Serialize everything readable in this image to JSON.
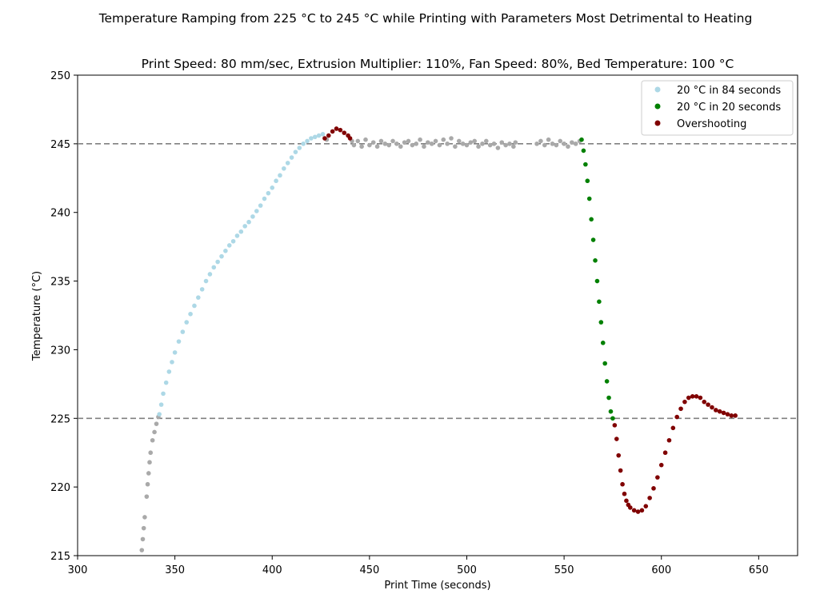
{
  "chart_data": {
    "type": "scatter",
    "title": "Temperature Ramping from 225 °C to 245 °C while Printing with Parameters Most Detrimental to Heating",
    "subtitle": "Print Speed: 80 mm/sec, Extrusion Multiplier: 110%, Fan Speed: 80%, Bed Temperature: 100 °C",
    "xlabel": "Print Time (seconds)",
    "ylabel": "Temperature (°C)",
    "xlim": [
      300,
      670
    ],
    "ylim": [
      215,
      250
    ],
    "xticks": [
      300,
      350,
      400,
      450,
      500,
      550,
      600,
      650
    ],
    "yticks": [
      215,
      220,
      225,
      230,
      235,
      240,
      245,
      250
    ],
    "xtick_labels": [
      "300",
      "350",
      "400",
      "450",
      "500",
      "550",
      "600",
      "650"
    ],
    "ytick_labels": [
      "215",
      "220",
      "225",
      "230",
      "235",
      "240",
      "245",
      "250"
    ],
    "reference_lines": [
      225,
      245
    ],
    "legend_position": "top-right",
    "legend": [
      {
        "label": "20 °C in 84 seconds",
        "color": "#add8e6"
      },
      {
        "label": "20 °C in 20 seconds",
        "color": "#008000"
      },
      {
        "label": "Overshooting",
        "color": "#800000"
      }
    ],
    "series": [
      {
        "name": "",
        "color": "#a9a9a9",
        "points": [
          [
            333,
            215.4
          ],
          [
            333.5,
            216.2
          ],
          [
            334,
            217
          ],
          [
            334.5,
            217.8
          ],
          [
            335.5,
            219.3
          ],
          [
            336,
            220.2
          ],
          [
            336.5,
            221
          ],
          [
            337,
            221.8
          ],
          [
            337.5,
            222.5
          ],
          [
            338.5,
            223.4
          ],
          [
            339.5,
            224
          ],
          [
            340.5,
            224.6
          ],
          [
            341.5,
            225.1
          ],
          [
            428,
            245.3
          ],
          [
            441,
            245.2
          ],
          [
            442,
            244.9
          ],
          [
            444,
            245.2
          ],
          [
            446,
            244.8
          ],
          [
            448,
            245.3
          ],
          [
            450,
            244.9
          ],
          [
            452,
            245.1
          ],
          [
            454,
            244.8
          ],
          [
            456,
            245.2
          ],
          [
            458,
            245
          ],
          [
            460,
            244.9
          ],
          [
            462,
            245.2
          ],
          [
            464,
            245
          ],
          [
            466,
            244.8
          ],
          [
            468,
            245.1
          ],
          [
            470,
            245.2
          ],
          [
            472,
            244.9
          ],
          [
            474,
            245
          ],
          [
            476,
            245.3
          ],
          [
            478,
            244.8
          ],
          [
            480,
            245.1
          ],
          [
            482,
            245
          ],
          [
            484,
            245.2
          ],
          [
            486,
            244.9
          ],
          [
            488,
            245.3
          ],
          [
            490,
            245
          ],
          [
            492,
            245.4
          ],
          [
            494,
            244.8
          ],
          [
            496,
            245.2
          ],
          [
            498,
            245
          ],
          [
            500,
            244.9
          ],
          [
            502,
            245.1
          ],
          [
            504,
            245.2
          ],
          [
            506,
            244.8
          ],
          [
            508,
            245
          ],
          [
            510,
            245.2
          ],
          [
            512,
            244.9
          ],
          [
            514,
            245
          ],
          [
            516,
            244.7
          ],
          [
            518,
            245.1
          ],
          [
            520,
            244.9
          ],
          [
            522,
            245
          ],
          [
            524,
            244.8
          ],
          [
            525,
            245.1
          ],
          [
            536,
            245
          ],
          [
            538,
            245.2
          ],
          [
            540,
            244.9
          ],
          [
            542,
            245.3
          ],
          [
            544,
            245
          ],
          [
            546,
            244.9
          ],
          [
            548,
            245.2
          ],
          [
            550,
            245
          ],
          [
            552,
            244.8
          ],
          [
            554,
            245.1
          ],
          [
            556,
            245
          ],
          [
            558,
            245.2
          ]
        ]
      },
      {
        "name": "20 °C in 84 seconds",
        "color": "#add8e6",
        "points": [
          [
            342,
            225.3
          ],
          [
            343,
            226
          ],
          [
            344,
            226.8
          ],
          [
            345.5,
            227.6
          ],
          [
            347,
            228.4
          ],
          [
            348.5,
            229.1
          ],
          [
            350,
            229.8
          ],
          [
            352,
            230.6
          ],
          [
            354,
            231.3
          ],
          [
            356,
            232
          ],
          [
            358,
            232.6
          ],
          [
            360,
            233.2
          ],
          [
            362,
            233.8
          ],
          [
            364,
            234.4
          ],
          [
            366,
            235
          ],
          [
            368,
            235.5
          ],
          [
            370,
            236
          ],
          [
            372,
            236.4
          ],
          [
            374,
            236.8
          ],
          [
            376,
            237.2
          ],
          [
            378,
            237.6
          ],
          [
            380,
            237.9
          ],
          [
            382,
            238.3
          ],
          [
            384,
            238.6
          ],
          [
            386,
            239
          ],
          [
            388,
            239.3
          ],
          [
            390,
            239.7
          ],
          [
            392,
            240.1
          ],
          [
            394,
            240.5
          ],
          [
            396,
            241
          ],
          [
            398,
            241.4
          ],
          [
            400,
            241.8
          ],
          [
            402,
            242.3
          ],
          [
            404,
            242.7
          ],
          [
            406,
            243.2
          ],
          [
            408,
            243.6
          ],
          [
            410,
            244
          ],
          [
            412,
            244.4
          ],
          [
            414,
            244.7
          ],
          [
            416,
            245
          ],
          [
            418,
            245.2
          ],
          [
            420,
            245.4
          ],
          [
            422,
            245.5
          ],
          [
            424,
            245.6
          ],
          [
            426,
            245.7
          ]
        ]
      },
      {
        "name": "20 °C in 20 seconds",
        "color": "#008000",
        "points": [
          [
            559,
            245.3
          ],
          [
            560,
            244.5
          ],
          [
            561,
            243.5
          ],
          [
            562,
            242.3
          ],
          [
            563,
            241
          ],
          [
            564,
            239.5
          ],
          [
            565,
            238
          ],
          [
            566,
            236.5
          ],
          [
            567,
            235
          ],
          [
            568,
            233.5
          ],
          [
            569,
            232
          ],
          [
            570,
            230.5
          ],
          [
            571,
            229
          ],
          [
            572,
            227.7
          ],
          [
            573,
            226.5
          ],
          [
            574,
            225.5
          ],
          [
            575,
            225
          ]
        ]
      },
      {
        "name": "Overshooting",
        "color": "#800000",
        "points": [
          [
            427,
            245.4
          ],
          [
            429,
            245.6
          ],
          [
            431,
            245.9
          ],
          [
            433,
            246.1
          ],
          [
            435,
            246
          ],
          [
            437,
            245.8
          ],
          [
            439,
            245.6
          ],
          [
            440,
            245.4
          ],
          [
            576,
            224.5
          ],
          [
            577,
            223.5
          ],
          [
            578,
            222.3
          ],
          [
            579,
            221.2
          ],
          [
            580,
            220.2
          ],
          [
            581,
            219.5
          ],
          [
            582,
            219
          ],
          [
            583,
            218.7
          ],
          [
            584,
            218.5
          ],
          [
            586,
            218.3
          ],
          [
            588,
            218.2
          ],
          [
            590,
            218.3
          ],
          [
            592,
            218.6
          ],
          [
            594,
            219.2
          ],
          [
            596,
            219.9
          ],
          [
            598,
            220.7
          ],
          [
            600,
            221.6
          ],
          [
            602,
            222.5
          ],
          [
            604,
            223.4
          ],
          [
            606,
            224.3
          ],
          [
            608,
            225.1
          ],
          [
            610,
            225.7
          ],
          [
            612,
            226.2
          ],
          [
            614,
            226.5
          ],
          [
            616,
            226.6
          ],
          [
            618,
            226.6
          ],
          [
            620,
            226.5
          ],
          [
            622,
            226.2
          ],
          [
            624,
            226
          ],
          [
            626,
            225.8
          ],
          [
            628,
            225.6
          ],
          [
            630,
            225.5
          ],
          [
            632,
            225.4
          ],
          [
            634,
            225.3
          ],
          [
            636,
            225.2
          ],
          [
            638,
            225.2
          ]
        ]
      }
    ]
  }
}
